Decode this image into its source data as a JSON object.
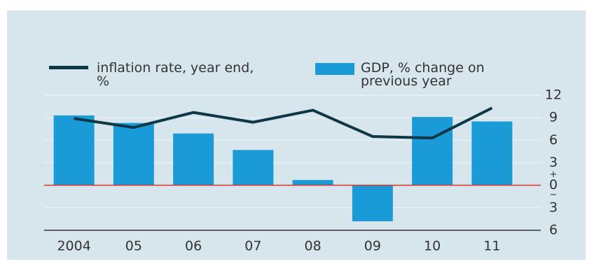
{
  "chart_data": {
    "type": "bar-line",
    "categories": [
      "2004",
      "05",
      "06",
      "07",
      "08",
      "09",
      "10",
      "11"
    ],
    "series": [
      {
        "name": "GDP, % change on previous year",
        "type": "bar",
        "color": "#1a9ad6",
        "values": [
          9.3,
          8.3,
          6.9,
          4.7,
          0.7,
          -4.8,
          9.1,
          8.5
        ]
      },
      {
        "name": "inflation rate, year end, %",
        "type": "line",
        "color": "#0e3846",
        "values": [
          8.9,
          7.7,
          9.7,
          8.4,
          10.0,
          6.5,
          6.3,
          10.3
        ]
      }
    ],
    "ylim": [
      -6,
      12
    ],
    "yticks": [
      {
        "value": -6,
        "label": "6"
      },
      {
        "value": -3,
        "label": "3"
      },
      0,
      3,
      6,
      9,
      12
    ],
    "plus_sign": "+",
    "minus_sign": "−",
    "grid": true,
    "zero_line_color": "#e0322c"
  }
}
